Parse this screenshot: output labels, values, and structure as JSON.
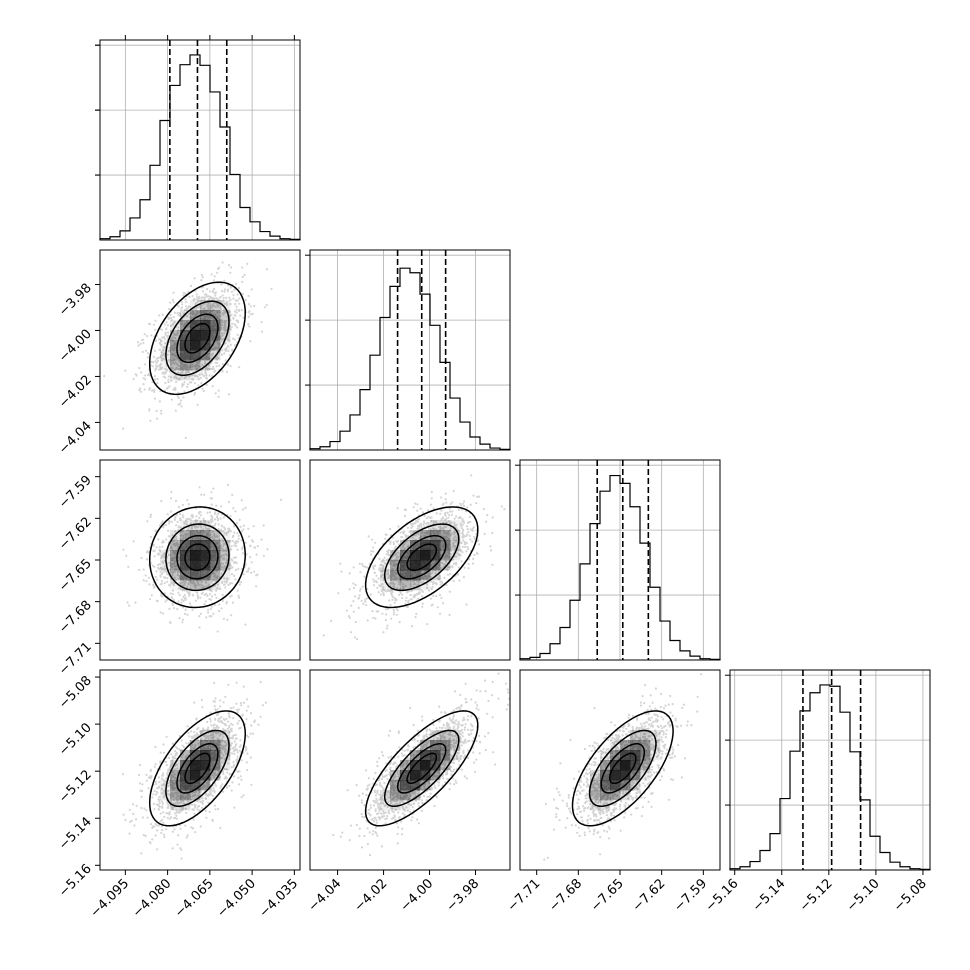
{
  "chart_data": {
    "type": "corner",
    "title": "",
    "n_params": 4,
    "parameters": [
      {
        "index": 0,
        "axis_ticks": [
          -4.095,
          -4.08,
          -4.065,
          -4.05,
          -4.035
        ],
        "tick_labels": [
          "−4.095",
          "−4.080",
          "−4.065",
          "−4.050",
          "−4.035"
        ],
        "range": [
          -4.104,
          -4.033
        ],
        "hist_x": [
          -4.104,
          -4.033
        ],
        "hist_counts": [
          0.2,
          0.5,
          1.4,
          3.4,
          6.2,
          11.5,
          18.4,
          23.8,
          27.0,
          28.5,
          26.9,
          22.8,
          17.4,
          10.1,
          5.0,
          2.8,
          1.3,
          0.6,
          0.2,
          0.1
        ],
        "quantiles": [
          -4.0792,
          -4.0694,
          -4.059
        ],
        "hist_ylim": [
          0,
          30.8
        ],
        "hist_yticks": [
          10,
          20,
          30
        ]
      },
      {
        "index": 1,
        "axis_ticks": [
          -4.04,
          -4.02,
          -4.0,
          -3.98
        ],
        "tick_labels": [
          "−4.04",
          "−4.02",
          "−4.00",
          "−3.98"
        ],
        "range": [
          -4.052,
          -3.965
        ],
        "hist_x": [
          -4.052,
          -3.965
        ],
        "hist_counts": [
          0.2,
          0.5,
          1.3,
          2.9,
          5.4,
          9.3,
          14.6,
          20.4,
          25.2,
          28.0,
          27.3,
          24.0,
          19.2,
          13.5,
          8.0,
          4.3,
          2.0,
          0.9,
          0.3,
          0.1
        ],
        "quantiles": [
          -4.0139,
          -4.0034,
          -3.993
        ],
        "hist_ylim": [
          0,
          30.8
        ],
        "hist_yticks": [
          10,
          20,
          30
        ]
      },
      {
        "index": 2,
        "axis_ticks": [
          -7.71,
          -7.68,
          -7.65,
          -7.62,
          -7.59
        ],
        "tick_labels": [
          "−7.71",
          "−7.68",
          "−7.65",
          "−7.62",
          "−7.59"
        ],
        "range": [
          -7.722,
          -7.578
        ],
        "hist_x": [
          -7.722,
          -7.578
        ],
        "hist_counts": [
          0.2,
          0.4,
          1.0,
          2.5,
          5.0,
          9.2,
          14.8,
          21.0,
          26.0,
          28.4,
          27.2,
          23.6,
          18.0,
          11.2,
          6.0,
          3.0,
          1.4,
          0.6,
          0.2,
          0.1
        ],
        "quantiles": [
          -7.6664,
          -7.648,
          -7.6296
        ],
        "hist_ylim": [
          0,
          30.8
        ],
        "hist_yticks": [
          10,
          20,
          30
        ]
      },
      {
        "index": 3,
        "axis_ticks": [
          -5.16,
          -5.14,
          -5.12,
          -5.1,
          -5.08
        ],
        "tick_labels": [
          "−5.16",
          "−5.14",
          "−5.12",
          "−5.10",
          "−5.08"
        ],
        "range": [
          -5.162,
          -5.077
        ],
        "hist_x": [
          -5.162,
          -5.077
        ],
        "hist_counts": [
          0.2,
          0.5,
          1.3,
          3.0,
          5.6,
          11.0,
          18.3,
          24.5,
          27.3,
          28.5,
          28.3,
          24.3,
          18.2,
          10.8,
          5.2,
          2.7,
          1.2,
          0.5,
          0.2,
          0.1
        ],
        "quantiles": [
          -5.131,
          -5.1188,
          -5.1065
        ],
        "hist_ylim": [
          0,
          30.8
        ],
        "hist_yticks": [
          10,
          20,
          30
        ]
      }
    ],
    "pairs": [
      {
        "row": 1,
        "col": 0,
        "mean": [
          -4.0694,
          -4.0034
        ],
        "sd": [
          0.0082,
          0.0118
        ],
        "rho": 0.45
      },
      {
        "row": 2,
        "col": 0,
        "mean": [
          -4.0694,
          -7.648
        ],
        "sd": [
          0.0082,
          0.0175
        ],
        "rho": 0.05
      },
      {
        "row": 2,
        "col": 1,
        "mean": [
          -4.0034,
          -7.648
        ],
        "sd": [
          0.0118,
          0.0175
        ],
        "rho": 0.55
      },
      {
        "row": 3,
        "col": 0,
        "mean": [
          -4.0694,
          -5.1188
        ],
        "sd": [
          0.0082,
          0.0118
        ],
        "rho": 0.6
      },
      {
        "row": 3,
        "col": 1,
        "mean": [
          -4.0034,
          -5.1188
        ],
        "sd": [
          0.0118,
          0.0118
        ],
        "rho": 0.75
      },
      {
        "row": 3,
        "col": 2,
        "mean": [
          -7.648,
          -5.1188
        ],
        "sd": [
          0.0175,
          0.0118
        ],
        "rho": 0.65
      }
    ],
    "contour_levels_sigma": [
      0.5,
      1.0,
      1.5,
      2.0
    ],
    "grid": true,
    "colors": {
      "ink": "#000000",
      "points": "#b0b0b0",
      "grid": "#b0b0b0",
      "density": "#000000"
    }
  }
}
